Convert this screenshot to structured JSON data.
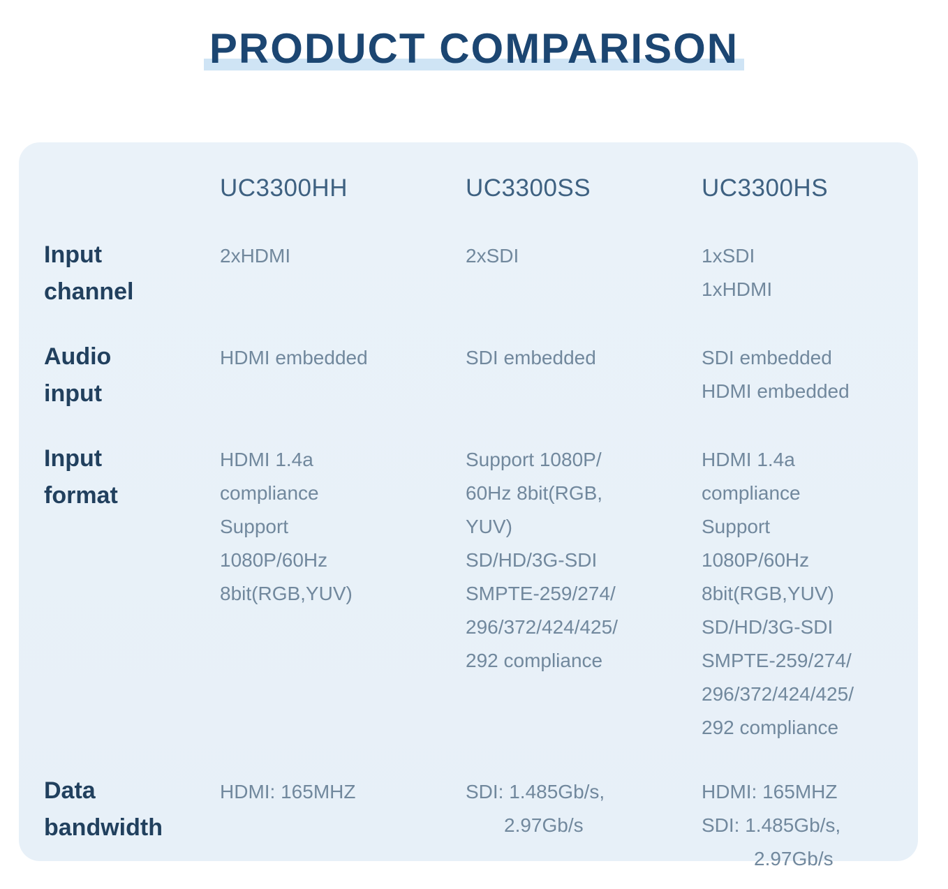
{
  "page": {
    "title": "PRODUCT COMPARISON"
  },
  "table": {
    "products": [
      "UC3300HH",
      "UC3300SS",
      "UC3300HS"
    ],
    "rows": [
      {
        "label": "Input\nchannel",
        "values": [
          [
            "2xHDMI"
          ],
          [
            "2xSDI"
          ],
          [
            "1xSDI",
            "1xHDMI"
          ]
        ]
      },
      {
        "label": "Audio\ninput",
        "values": [
          [
            "HDMI embedded"
          ],
          [
            "SDI embedded"
          ],
          [
            "SDI embedded",
            "HDMI embedded"
          ]
        ]
      },
      {
        "label": "Input\nformat",
        "values": [
          [
            "HDMI 1.4a",
            "compliance",
            "Support",
            "1080P/60Hz",
            "8bit(RGB,YUV)"
          ],
          [
            "Support 1080P/",
            "60Hz 8bit(RGB,",
            "YUV)",
            "SD/HD/3G-SDI",
            "SMPTE-259/274/",
            "296/372/424/425/",
            "292 compliance"
          ],
          [
            "HDMI 1.4a",
            "compliance",
            "Support 1080P/60Hz",
            "8bit(RGB,YUV)",
            "SD/HD/3G-SDI",
            "SMPTE-259/274/",
            "296/372/424/425/",
            "292 compliance"
          ]
        ]
      },
      {
        "label": "Data\nbandwidth",
        "values": [
          [
            "HDMI: 165MHZ"
          ],
          [
            "SDI: 1.485Gb/s,",
            {
              "text": "2.97Gb/s",
              "indent": 55
            }
          ],
          [
            "HDMI: 165MHZ",
            "SDI: 1.485Gb/s,",
            {
              "text": "2.97Gb/s",
              "indent": 75
            }
          ]
        ]
      }
    ]
  },
  "colors": {
    "page-bg": "#ffffff",
    "card-bg": "#e9f1f8",
    "title-color": "#1c4672",
    "title-highlight": "#cfe4f5",
    "header-color": "#3e6181",
    "label-color": "#21405e",
    "value-color": "#71889d"
  }
}
